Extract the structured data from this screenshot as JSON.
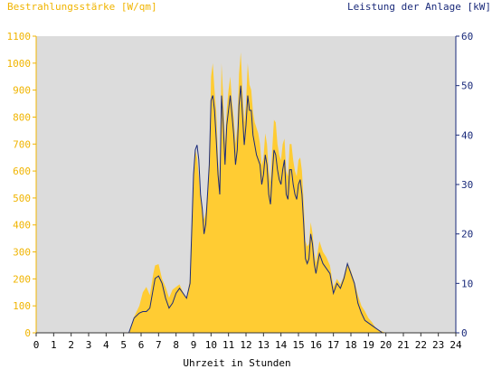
{
  "chart_data": {
    "type": "area",
    "title_left": "Bestrahlungsstärke [W/qm]",
    "title_right": "Leistung der Anlage [kW]",
    "xlabel": "Uhrzeit in Stunden",
    "x_ticks": [
      "0",
      "1",
      "2",
      "3",
      "4",
      "5",
      "6",
      "7",
      "8",
      "9",
      "10",
      "11",
      "12",
      "13",
      "14",
      "15",
      "16",
      "17",
      "18",
      "19",
      "20",
      "21",
      "22",
      "23",
      "24"
    ],
    "xlim": [
      0,
      24
    ],
    "y_left": {
      "lim": [
        0,
        1100
      ],
      "ticks": [
        "0",
        "100",
        "200",
        "300",
        "400",
        "500",
        "600",
        "700",
        "800",
        "900",
        "1000",
        "1100"
      ]
    },
    "y_right": {
      "lim": [
        0,
        60
      ],
      "ticks": [
        "0",
        "10",
        "20",
        "30",
        "40",
        "50",
        "60"
      ]
    },
    "grid": false,
    "colors": {
      "irradiance": "#ffcc33",
      "power": "#1a2a7a",
      "plot_bg": "#dcdcdc",
      "left_axis_text": "#f0b400",
      "right_axis_text": "#1a2a7a"
    },
    "series": [
      {
        "name": "Bestrahlungsstärke [W/qm]",
        "axis": "left",
        "kind": "area",
        "x": [
          0,
          5.3,
          5.6,
          5.9,
          6.1,
          6.3,
          6.5,
          6.7,
          6.8,
          7.0,
          7.2,
          7.4,
          7.6,
          7.8,
          8.0,
          8.2,
          8.4,
          8.6,
          8.8,
          9.0,
          9.1,
          9.2,
          9.3,
          9.4,
          9.5,
          9.6,
          9.7,
          9.8,
          9.9,
          10.0,
          10.1,
          10.2,
          10.3,
          10.4,
          10.5,
          10.6,
          10.7,
          10.8,
          10.9,
          11.0,
          11.1,
          11.2,
          11.3,
          11.4,
          11.5,
          11.6,
          11.7,
          11.8,
          11.9,
          12.0,
          12.1,
          12.2,
          12.3,
          12.4,
          12.5,
          12.6,
          12.7,
          12.8,
          12.9,
          13.0,
          13.1,
          13.2,
          13.3,
          13.4,
          13.5,
          13.6,
          13.7,
          13.8,
          13.9,
          14.0,
          14.1,
          14.2,
          14.3,
          14.4,
          14.5,
          14.6,
          14.7,
          14.8,
          14.9,
          15.0,
          15.1,
          15.2,
          15.3,
          15.4,
          15.5,
          15.6,
          15.7,
          15.8,
          15.9,
          16.0,
          16.2,
          16.4,
          16.6,
          16.8,
          17.0,
          17.2,
          17.4,
          17.6,
          17.8,
          18.0,
          18.2,
          18.4,
          18.6,
          18.8,
          19.0,
          19.2,
          19.4,
          19.6,
          19.8,
          20.0,
          24
        ],
        "y": [
          0,
          0,
          60,
          100,
          150,
          170,
          140,
          220,
          250,
          255,
          200,
          170,
          130,
          160,
          170,
          180,
          150,
          130,
          200,
          600,
          680,
          650,
          580,
          500,
          450,
          420,
          450,
          520,
          600,
          950,
          1000,
          900,
          820,
          650,
          560,
          1000,
          870,
          700,
          830,
          900,
          950,
          860,
          800,
          700,
          760,
          960,
          1040,
          900,
          780,
          850,
          1000,
          920,
          900,
          820,
          780,
          760,
          740,
          700,
          620,
          650,
          740,
          700,
          600,
          560,
          680,
          790,
          780,
          700,
          660,
          640,
          700,
          720,
          600,
          580,
          700,
          700,
          640,
          600,
          580,
          640,
          650,
          600,
          480,
          340,
          320,
          330,
          410,
          370,
          300,
          260,
          340,
          300,
          280,
          250,
          170,
          200,
          180,
          210,
          260,
          230,
          190,
          140,
          100,
          80,
          55,
          40,
          20,
          10,
          5,
          0,
          0
        ]
      },
      {
        "name": "Leistung der Anlage [kW]",
        "axis": "right",
        "kind": "line",
        "x": [
          0,
          5.3,
          5.6,
          5.9,
          6.1,
          6.3,
          6.5,
          6.7,
          6.8,
          7.0,
          7.2,
          7.4,
          7.6,
          7.8,
          8.0,
          8.2,
          8.4,
          8.6,
          8.8,
          9.0,
          9.1,
          9.2,
          9.3,
          9.4,
          9.5,
          9.6,
          9.7,
          9.8,
          9.9,
          10.0,
          10.1,
          10.2,
          10.3,
          10.4,
          10.5,
          10.6,
          10.7,
          10.8,
          10.9,
          11.0,
          11.1,
          11.2,
          11.3,
          11.4,
          11.5,
          11.6,
          11.7,
          11.8,
          11.9,
          12.0,
          12.1,
          12.2,
          12.3,
          12.4,
          12.5,
          12.6,
          12.7,
          12.8,
          12.9,
          13.0,
          13.1,
          13.2,
          13.3,
          13.4,
          13.5,
          13.6,
          13.7,
          13.8,
          13.9,
          14.0,
          14.1,
          14.2,
          14.3,
          14.4,
          14.5,
          14.6,
          14.7,
          14.8,
          14.9,
          15.0,
          15.1,
          15.2,
          15.3,
          15.4,
          15.5,
          15.6,
          15.7,
          15.8,
          15.9,
          16.0,
          16.2,
          16.4,
          16.6,
          16.8,
          17.0,
          17.2,
          17.4,
          17.6,
          17.8,
          18.0,
          18.2,
          18.4,
          18.6,
          18.8,
          19.0,
          19.2,
          19.4,
          19.6,
          19.8,
          20.0,
          24
        ],
        "y": [
          0,
          0,
          3,
          4,
          4.3,
          4.3,
          5,
          9,
          11,
          11.5,
          10,
          7,
          5,
          6,
          8,
          9,
          8,
          7,
          10,
          32,
          37,
          38,
          35,
          28,
          25,
          20,
          22,
          28,
          34,
          47,
          48,
          45,
          39,
          32,
          28,
          48,
          42,
          34,
          42,
          45,
          48,
          44,
          40,
          34,
          37,
          46,
          50,
          44,
          38,
          42,
          48,
          45,
          45,
          40,
          38,
          36,
          35,
          34,
          30,
          32,
          36,
          34,
          28,
          26,
          32,
          37,
          36,
          33,
          31,
          30,
          33,
          35,
          28,
          27,
          33,
          33,
          30,
          28,
          27,
          30,
          31,
          28,
          22,
          15,
          14,
          15,
          20,
          18,
          14,
          12,
          16,
          14,
          13,
          12,
          8,
          10,
          9,
          11,
          14,
          12,
          10,
          6,
          4,
          2.5,
          2,
          1.5,
          1,
          0.5,
          0,
          0,
          0
        ]
      }
    ]
  }
}
